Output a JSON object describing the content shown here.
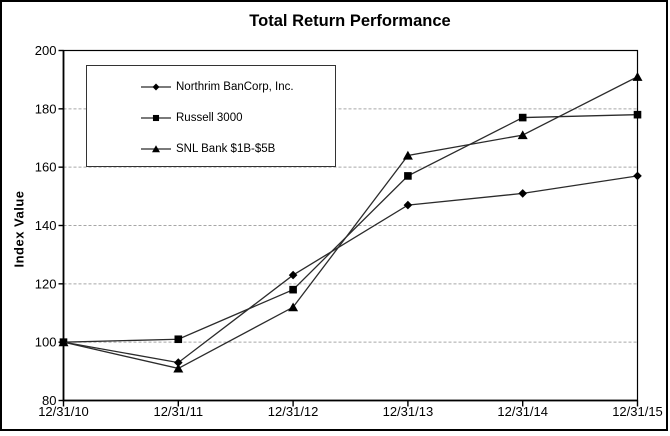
{
  "window": {
    "background": "#ffffff",
    "frame_border_color": "#000000"
  },
  "chart_data": {
    "type": "line",
    "title": "Total Return Performance",
    "xlabel": "",
    "ylabel": "Index Value",
    "categories": [
      "12/31/10",
      "12/31/11",
      "12/31/12",
      "12/31/13",
      "12/31/14",
      "12/31/15"
    ],
    "y_ticks": [
      80,
      100,
      120,
      140,
      160,
      180,
      200
    ],
    "ylim": [
      80,
      200
    ],
    "grid": "horizontal-dashed",
    "legend_position": "top-left-inside-box",
    "series": [
      {
        "name": "Northrim BanCorp, Inc.",
        "marker": "diamond",
        "values": [
          100,
          93,
          123,
          147,
          151,
          157
        ]
      },
      {
        "name": "Russell 3000",
        "marker": "square",
        "values": [
          100,
          101,
          118,
          157,
          177,
          178
        ]
      },
      {
        "name": "SNL Bank $1B-$5B",
        "marker": "triangle",
        "values": [
          100,
          91,
          112,
          164,
          171,
          191
        ]
      }
    ],
    "colors": {
      "line": "#2b2b2b",
      "marker": "#000000",
      "grid": "#a6a6a6",
      "axis": "#000000",
      "text": "#000000",
      "legend_border": "#333333",
      "background": "#ffffff"
    }
  }
}
